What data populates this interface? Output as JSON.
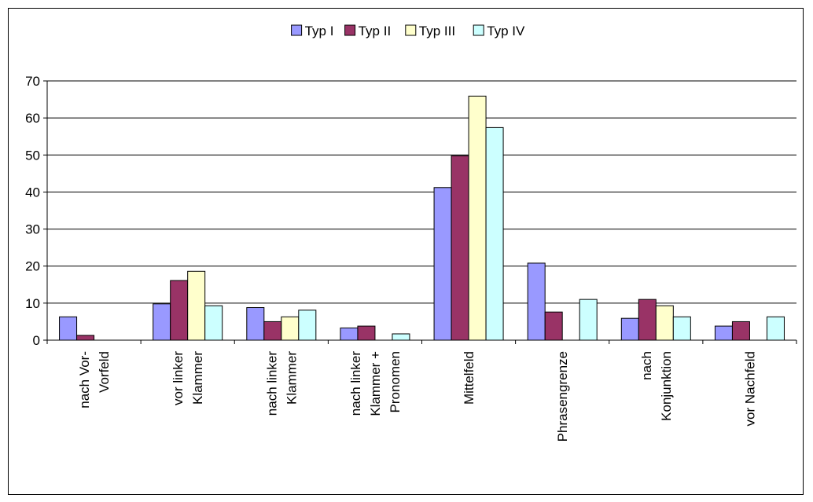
{
  "chart_data": {
    "type": "bar",
    "categories": [
      [
        "nach Vor-",
        "Vorfeld"
      ],
      [
        "vor linker",
        "Klammer"
      ],
      [
        "nach linker",
        "Klammer"
      ],
      [
        "nach linker",
        "Klammer +",
        "Pronomen"
      ],
      [
        "Mittelfeld"
      ],
      [
        "Phrasengrenze"
      ],
      [
        "nach",
        "Konjunktion"
      ],
      [
        "vor Nachfeld"
      ]
    ],
    "series": [
      {
        "name": "Typ I",
        "color": "#9999ff",
        "values": [
          6.3,
          9.8,
          8.8,
          3.3,
          41.2,
          20.8,
          5.9,
          3.8
        ]
      },
      {
        "name": "Typ II",
        "color": "#993366",
        "values": [
          1.3,
          16.1,
          5.0,
          3.8,
          49.8,
          7.6,
          11.0,
          5.0
        ]
      },
      {
        "name": "Typ III",
        "color": "#ffffcc",
        "values": [
          0,
          18.6,
          6.3,
          0,
          65.9,
          0,
          9.3,
          0
        ]
      },
      {
        "name": "Typ IV",
        "color": "#ccffff",
        "values": [
          0,
          9.3,
          8.1,
          1.7,
          57.4,
          11.0,
          6.3,
          6.3
        ]
      }
    ],
    "ylim": [
      0,
      70
    ],
    "yticks": [
      0,
      10,
      20,
      30,
      40,
      50,
      60,
      70
    ],
    "grid": true,
    "legend_position": "top-center"
  }
}
